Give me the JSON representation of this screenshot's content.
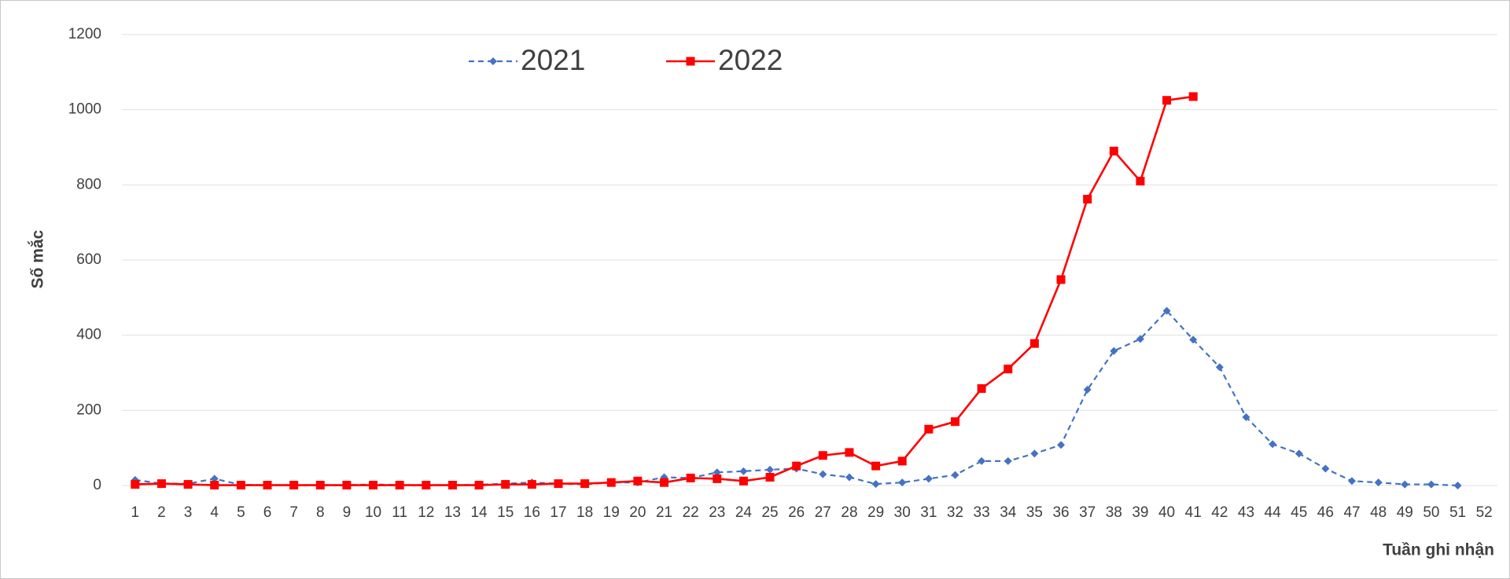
{
  "chart_data": {
    "type": "line",
    "y_label": "Số mắc",
    "x_label": "Tuần ghi nhận",
    "categories": [
      "1",
      "2",
      "3",
      "4",
      "5",
      "6",
      "7",
      "8",
      "9",
      "10",
      "11",
      "12",
      "13",
      "14",
      "15",
      "16",
      "17",
      "18",
      "19",
      "20",
      "21",
      "22",
      "23",
      "24",
      "25",
      "26",
      "27",
      "28",
      "29",
      "30",
      "31",
      "32",
      "33",
      "34",
      "35",
      "36",
      "37",
      "38",
      "39",
      "40",
      "41",
      "42",
      "43",
      "44",
      "45",
      "46",
      "47",
      "48",
      "49",
      "50",
      "51",
      "52"
    ],
    "series": [
      {
        "name": "2021",
        "color": "#4472c4",
        "dashed": true,
        "marker": "diamond",
        "values": [
          15,
          5,
          5,
          18,
          2,
          1,
          1,
          1,
          1,
          3,
          1,
          1,
          1,
          2,
          5,
          8,
          5,
          3,
          8,
          8,
          22,
          20,
          35,
          38,
          42,
          45,
          30,
          22,
          4,
          8,
          18,
          28,
          65,
          65,
          85,
          108,
          255,
          358,
          390,
          465,
          388,
          315,
          182,
          110,
          85,
          45,
          12,
          8,
          3,
          3,
          0,
          null
        ]
      },
      {
        "name": "2022",
        "color": "#ff0000",
        "dashed": false,
        "marker": "square",
        "values": [
          3,
          5,
          3,
          1,
          1,
          1,
          1,
          1,
          1,
          1,
          1,
          1,
          1,
          1,
          3,
          3,
          5,
          5,
          8,
          12,
          8,
          20,
          18,
          12,
          22,
          52,
          80,
          88,
          52,
          65,
          150,
          170,
          258,
          310,
          378,
          548,
          762,
          890,
          810,
          1025,
          1035,
          null,
          null,
          null,
          null,
          null,
          null,
          null,
          null,
          null,
          null,
          null
        ]
      }
    ],
    "ylim": [
      0,
      1200
    ],
    "yticks": [
      0,
      200,
      400,
      600,
      800,
      1000,
      1200
    ],
    "grid": true
  }
}
